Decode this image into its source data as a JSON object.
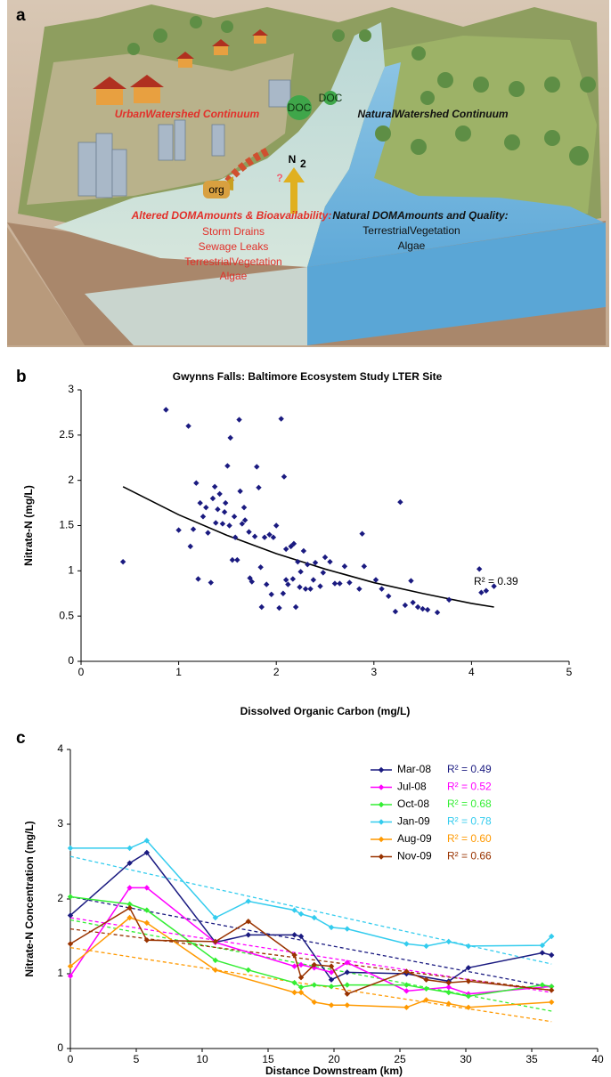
{
  "diagram": {
    "label": "a",
    "urban_title": "UrbanWatershed Continuum",
    "natural_title": "NaturalWatershed Continuum",
    "doc_large": "DOC",
    "doc_small": "DOC",
    "n2": "N",
    "n2_sub": "2",
    "org": "org",
    "question": "?",
    "altered_heading": "Altered DOMAmounts & Bioavailability:",
    "altered_items": [
      "Storm Drains",
      "Sewage Leaks",
      "TerrestrialVegetation",
      "Algae"
    ],
    "natural_heading": "Natural DOMAmounts and Quality:",
    "natural_items": [
      "TerrestrialVegetation",
      "Algae"
    ]
  },
  "chart_data": [
    {
      "type": "scatter",
      "label": "b",
      "title": "Gwynns Falls:  Baltimore Ecosystem Study LTER Site",
      "x_label": "Dissolved Organic Carbon (mg/L)",
      "y_label": "Nitrate-N (mg/L)",
      "color": "#1a1a80",
      "xlim": [
        0,
        5
      ],
      "ylim": [
        0,
        3
      ],
      "xticks": [
        0,
        1,
        2,
        3,
        4,
        5
      ],
      "yticks": [
        0,
        0.5,
        1,
        1.5,
        2,
        2.5,
        3
      ],
      "x": [
        0.43,
        0.87,
        1.0,
        1.1,
        1.12,
        1.15,
        1.18,
        1.2,
        1.22,
        1.25,
        1.28,
        1.3,
        1.33,
        1.35,
        1.37,
        1.38,
        1.4,
        1.42,
        1.45,
        1.47,
        1.48,
        1.5,
        1.52,
        1.53,
        1.55,
        1.57,
        1.58,
        1.6,
        1.62,
        1.63,
        1.65,
        1.67,
        1.68,
        1.72,
        1.73,
        1.75,
        1.78,
        1.8,
        1.82,
        1.84,
        1.85,
        1.88,
        1.9,
        1.93,
        1.95,
        1.97,
        2.0,
        2.03,
        2.05,
        2.07,
        2.08,
        2.1,
        2.1,
        2.12,
        2.15,
        2.17,
        2.18,
        2.2,
        2.22,
        2.24,
        2.25,
        2.28,
        2.3,
        2.32,
        2.35,
        2.38,
        2.4,
        2.45,
        2.48,
        2.5,
        2.55,
        2.6,
        2.65,
        2.7,
        2.75,
        2.85,
        2.88,
        2.9,
        3.02,
        3.08,
        3.15,
        3.22,
        3.27,
        3.32,
        3.38,
        3.4,
        3.45,
        3.5,
        3.55,
        3.65,
        3.77,
        4.08,
        4.1,
        4.15,
        4.23
      ],
      "values": [
        1.1,
        2.78,
        1.45,
        2.6,
        1.27,
        1.46,
        1.97,
        0.91,
        1.75,
        1.6,
        1.7,
        1.42,
        0.87,
        1.8,
        1.93,
        1.53,
        1.68,
        1.85,
        1.52,
        1.65,
        1.75,
        2.16,
        1.5,
        2.47,
        1.12,
        1.6,
        1.37,
        1.12,
        2.67,
        1.88,
        1.52,
        1.7,
        1.56,
        1.43,
        0.92,
        0.88,
        1.38,
        2.15,
        1.92,
        1.04,
        0.6,
        1.37,
        0.85,
        1.4,
        0.74,
        1.37,
        1.5,
        0.59,
        2.68,
        0.75,
        2.04,
        0.9,
        1.24,
        0.85,
        1.27,
        0.91,
        1.3,
        0.6,
        1.1,
        0.82,
        0.99,
        1.22,
        0.8,
        1.07,
        0.8,
        0.9,
        1.09,
        0.83,
        0.98,
        1.15,
        1.1,
        0.86,
        0.86,
        1.05,
        0.87,
        0.8,
        1.41,
        1.05,
        0.9,
        0.8,
        0.72,
        0.55,
        1.76,
        0.62,
        0.89,
        0.65,
        0.6,
        0.58,
        0.57,
        0.54,
        0.68,
        1.02,
        0.76,
        0.78,
        0.83
      ],
      "trendline": {
        "x": [
          0.43,
          1,
          1.5,
          2,
          2.5,
          3,
          3.5,
          4,
          4.23
        ],
        "values": [
          1.93,
          1.62,
          1.39,
          1.19,
          1.02,
          0.87,
          0.75,
          0.64,
          0.6
        ]
      },
      "annotation": "R² = 0.39"
    },
    {
      "type": "line",
      "label": "c",
      "x_label": "Distance Downstream (km)",
      "y_label": "Nitrate-N Concentration (mg/L)",
      "xlim": [
        0,
        40
      ],
      "ylim": [
        0,
        4
      ],
      "xticks": [
        0,
        5,
        10,
        15,
        20,
        25,
        30,
        35,
        40
      ],
      "yticks": [
        0,
        1,
        2,
        3,
        4
      ],
      "series": [
        {
          "name": "Mar-08",
          "color": "#1a1a80",
          "r2_label": "R² = 0.49",
          "x": [
            0,
            4.5,
            5.8,
            11,
            13.5,
            17,
            17.5,
            19.8,
            21,
            25.5,
            28.7,
            30.2,
            35.8,
            36.5
          ],
          "values": [
            1.78,
            2.48,
            2.62,
            1.42,
            1.52,
            1.52,
            1.5,
            0.92,
            1.02,
            1.0,
            0.9,
            1.08,
            1.28,
            1.25
          ],
          "trend_x": [
            0,
            36.5
          ],
          "trend_values": [
            2.03,
            0.82
          ]
        },
        {
          "name": "Jul-08",
          "color": "#ff00ff",
          "r2_label": "R² = 0.52",
          "x": [
            0,
            4.5,
            5.8,
            11,
            17,
            17.5,
            18.5,
            19.8,
            21,
            25.5,
            28.7,
            30.2,
            36.5
          ],
          "values": [
            0.97,
            2.15,
            2.15,
            1.42,
            1.1,
            1.12,
            1.08,
            1.02,
            1.15,
            0.77,
            0.82,
            0.73,
            0.83
          ],
          "trend_x": [
            0,
            36.5
          ],
          "trend_values": [
            1.75,
            0.75
          ]
        },
        {
          "name": "Oct-08",
          "color": "#33ee33",
          "r2_label": "R² = 0.68",
          "x": [
            0,
            4.5,
            5.8,
            11,
            13.5,
            17,
            17.5,
            18.5,
            19.8,
            21,
            25.5,
            27,
            28.7,
            30.2,
            35.8,
            36.5
          ],
          "values": [
            2.03,
            1.93,
            1.85,
            1.18,
            1.05,
            0.88,
            0.82,
            0.85,
            0.83,
            0.85,
            0.85,
            0.8,
            0.75,
            0.7,
            0.85,
            0.83
          ],
          "trend_x": [
            0,
            36.5
          ],
          "trend_values": [
            1.72,
            0.5
          ]
        },
        {
          "name": "Jan-09",
          "color": "#33ccee",
          "r2_label": "R² = 0.78",
          "x": [
            0,
            4.5,
            5.8,
            11,
            13.5,
            17,
            17.5,
            18.5,
            19.8,
            21,
            25.5,
            27,
            28.7,
            30.2,
            35.8,
            36.5
          ],
          "values": [
            2.68,
            2.68,
            2.78,
            1.75,
            1.97,
            1.85,
            1.8,
            1.75,
            1.62,
            1.6,
            1.4,
            1.37,
            1.43,
            1.37,
            1.38,
            1.5
          ],
          "trend_x": [
            0,
            36.5
          ],
          "trend_values": [
            2.57,
            1.13
          ]
        },
        {
          "name": "Aug-09",
          "color": "#ff9900",
          "r2_label": "R² = 0.60",
          "x": [
            0,
            4.5,
            5.8,
            11,
            17,
            17.5,
            18.5,
            19.8,
            21,
            25.5,
            27,
            28.7,
            30.2,
            36.5
          ],
          "values": [
            1.1,
            1.75,
            1.68,
            1.05,
            0.75,
            0.75,
            0.62,
            0.58,
            0.58,
            0.55,
            0.65,
            0.6,
            0.55,
            0.62
          ],
          "trend_x": [
            0,
            36.5
          ],
          "trend_values": [
            1.35,
            0.36
          ]
        },
        {
          "name": "Nov-09",
          "color": "#993300",
          "r2_label": "R² = 0.66",
          "x": [
            0,
            4.5,
            5.8,
            11,
            13.5,
            17,
            17.5,
            18.5,
            19.8,
            21,
            25.5,
            27,
            28.7,
            30.2,
            36.5
          ],
          "values": [
            1.4,
            1.88,
            1.45,
            1.43,
            1.7,
            1.25,
            0.95,
            1.12,
            1.1,
            0.73,
            1.03,
            0.92,
            0.88,
            0.9,
            0.78
          ],
          "trend_x": [
            0,
            36.5
          ],
          "trend_values": [
            1.6,
            0.78
          ]
        }
      ]
    }
  ]
}
